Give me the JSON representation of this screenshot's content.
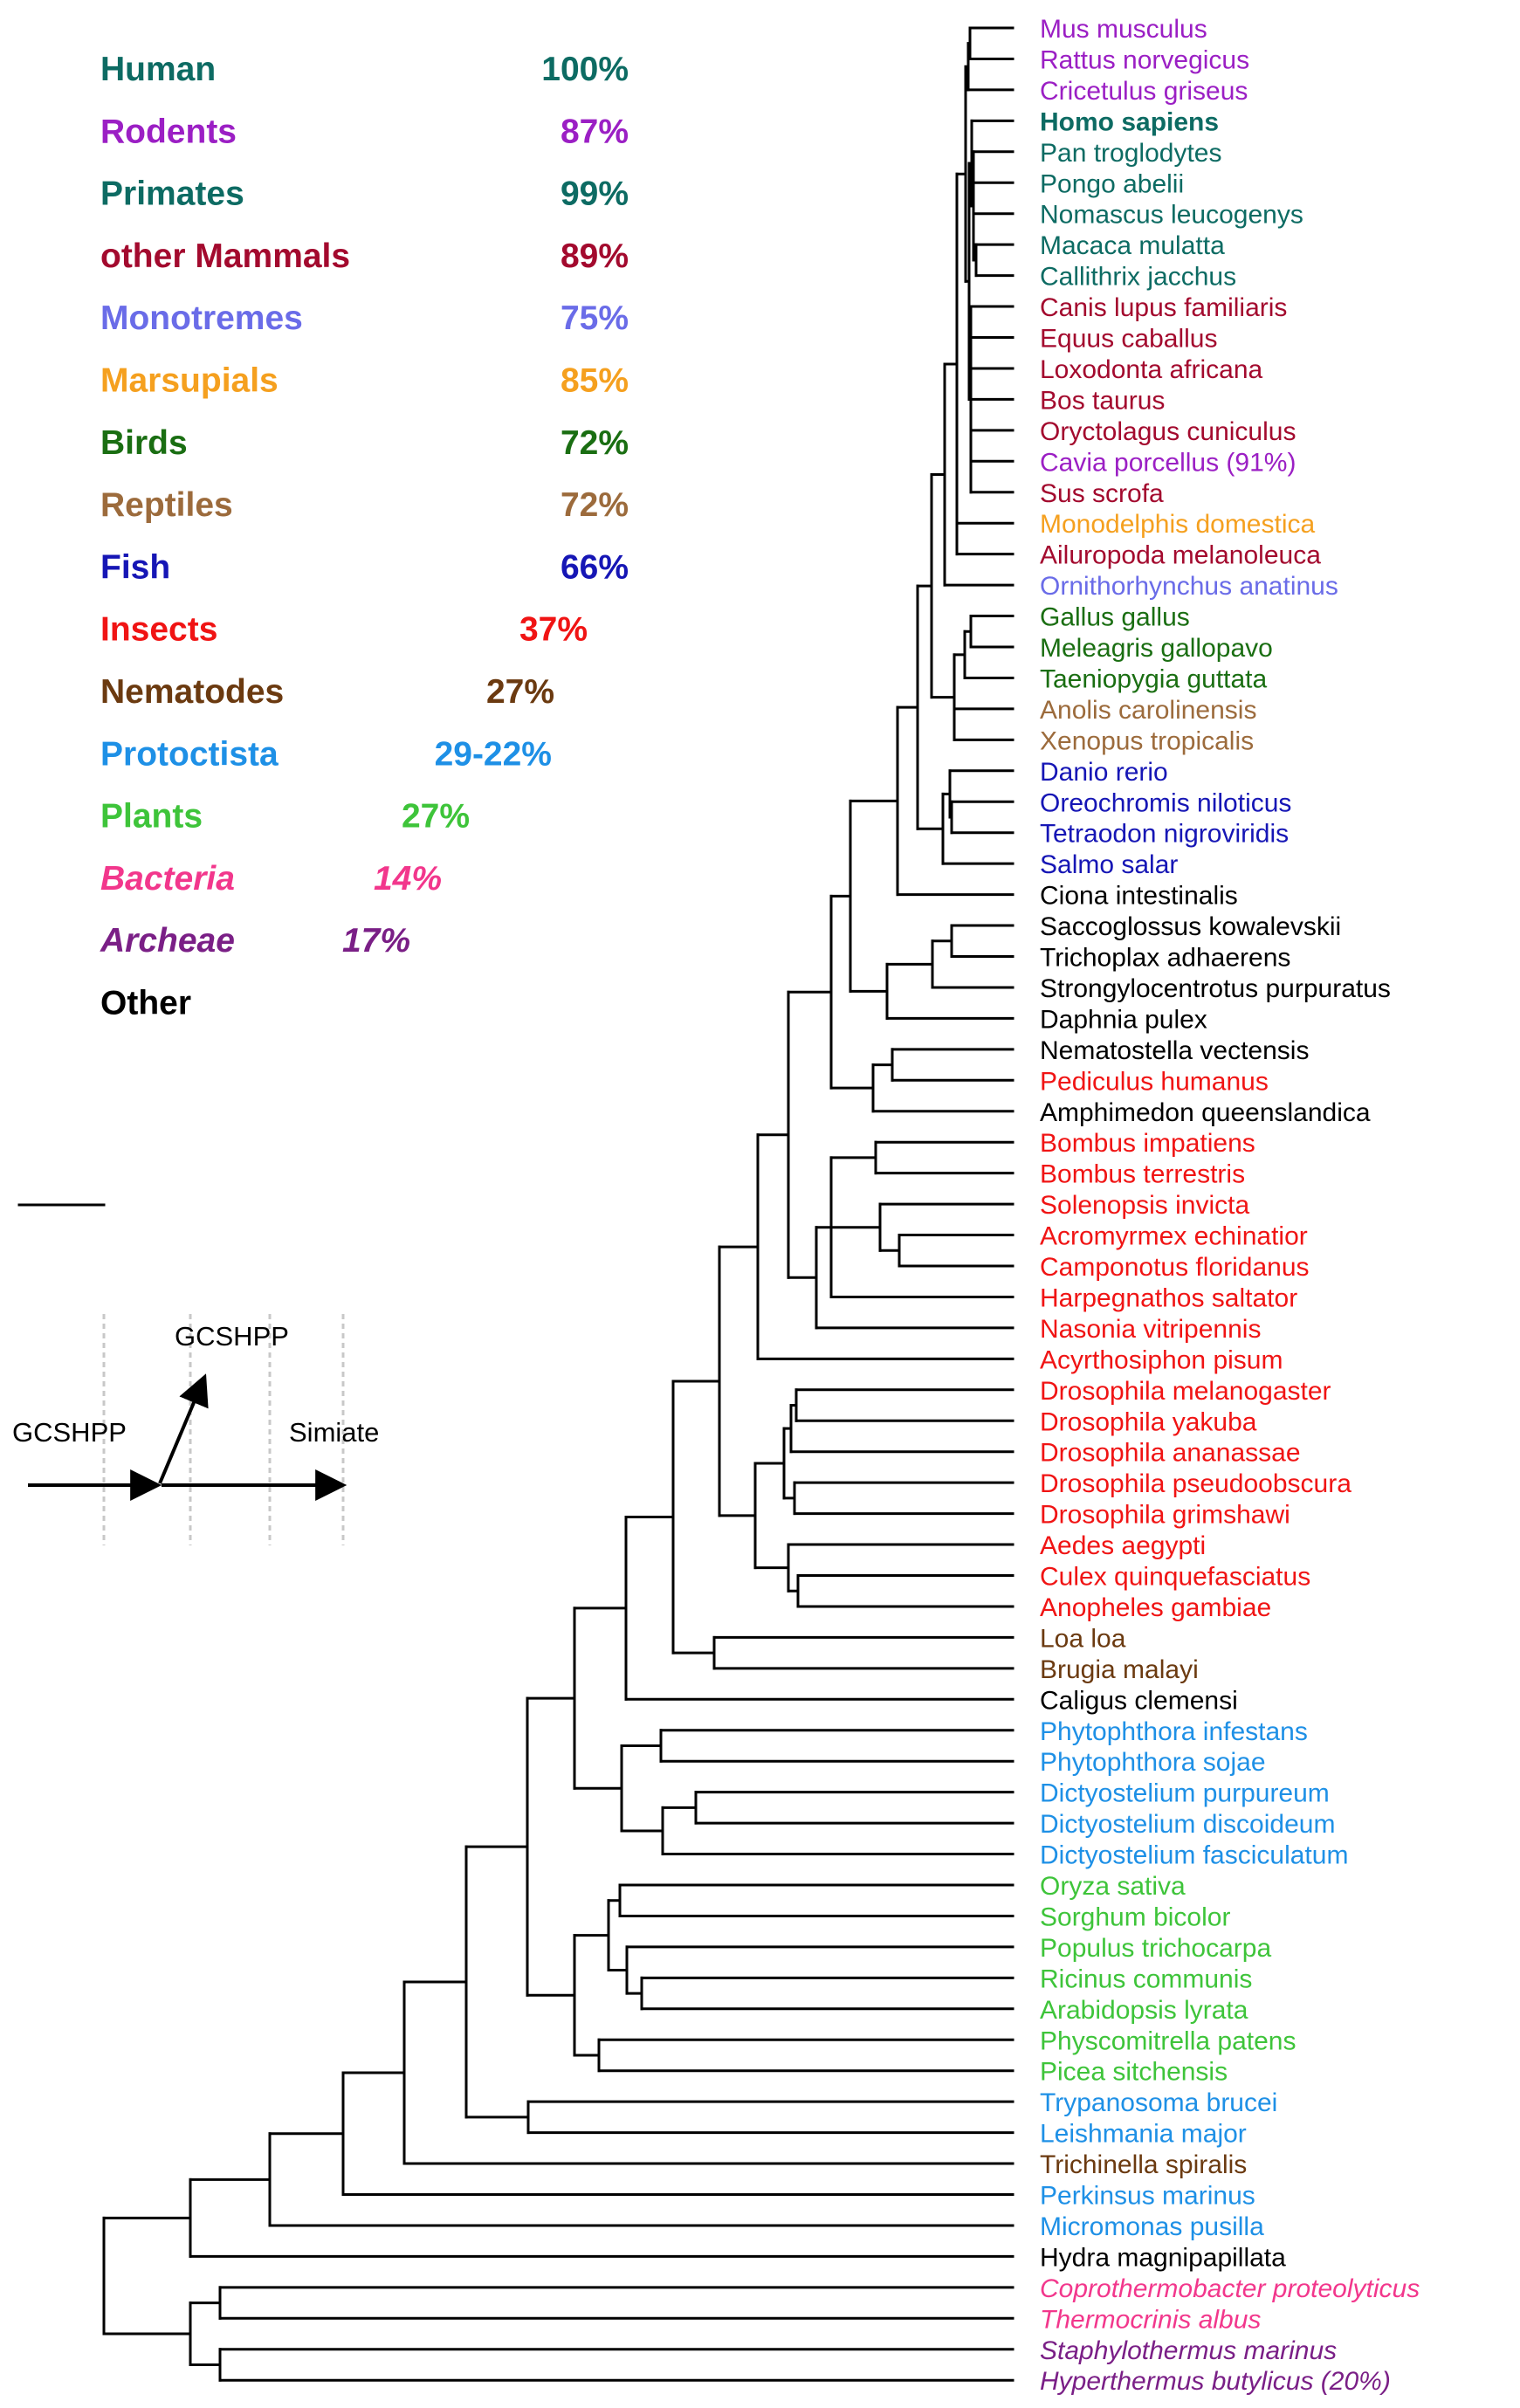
{
  "colors": {
    "human": "#0d6b63",
    "rodents": "#9b1fc4",
    "primates": "#0d6b63",
    "other_mammals": "#a30a2e",
    "monotremes": "#6a6ce8",
    "marsupials": "#f5a01f",
    "birds": "#1a6e12",
    "reptiles": "#9c6b3c",
    "fish": "#1616b5",
    "insects": "#f01414",
    "nematodes": "#6b3a10",
    "protoctista": "#1e90e6",
    "plants": "#3ec43a",
    "bacteria": "#f2378c",
    "archaea": "#7a1f86",
    "other": "#000000"
  },
  "legend": [
    {
      "name": "Human",
      "pct": "100%",
      "group": "human"
    },
    {
      "name": "Rodents",
      "pct": "87%",
      "group": "rodents"
    },
    {
      "name": "Primates",
      "pct": "99%",
      "group": "primates"
    },
    {
      "name": "other Mammals",
      "pct": "89%",
      "group": "other_mammals"
    },
    {
      "name": "Monotremes",
      "pct": "75%",
      "group": "monotremes"
    },
    {
      "name": "Marsupials",
      "pct": "85%",
      "group": "marsupials"
    },
    {
      "name": "Birds",
      "pct": "72%",
      "group": "birds"
    },
    {
      "name": "Reptiles",
      "pct": "72%",
      "group": "reptiles"
    },
    {
      "name": "Fish",
      "pct": "66%",
      "group": "fish"
    },
    {
      "name": "Insects",
      "pct": "37%",
      "group": "insects"
    },
    {
      "name": "Nematodes",
      "pct": "27%",
      "group": "nematodes"
    },
    {
      "name": "Protoctista",
      "pct": "29-22%",
      "group": "protoctista"
    },
    {
      "name": "Plants",
      "pct": "27%",
      "group": "plants"
    },
    {
      "name": "Bacteria",
      "pct": "14%",
      "group": "bacteria",
      "italic": true
    },
    {
      "name": "Archeae",
      "pct": "17%",
      "group": "archaea",
      "italic": true
    },
    {
      "name": "Other",
      "pct": "",
      "group": "other"
    }
  ],
  "events": {
    "gcshpp_origin": "GCSHPP",
    "gcshpp_branch": "GCSHPP",
    "simiate": "Simiate"
  },
  "species": [
    {
      "name": "Mus musculus",
      "group": "rodents"
    },
    {
      "name": "Rattus norvegicus",
      "group": "rodents"
    },
    {
      "name": "Cricetulus griseus",
      "group": "rodents"
    },
    {
      "name": "Homo sapiens",
      "group": "human",
      "bold": true
    },
    {
      "name": "Pan troglodytes",
      "group": "primates"
    },
    {
      "name": "Pongo abelii",
      "group": "primates"
    },
    {
      "name": "Nomascus leucogenys",
      "group": "primates"
    },
    {
      "name": "Macaca mulatta",
      "group": "primates"
    },
    {
      "name": "Callithrix jacchus",
      "group": "primates"
    },
    {
      "name": "Canis lupus familiaris",
      "group": "other_mammals"
    },
    {
      "name": "Equus caballus",
      "group": "other_mammals"
    },
    {
      "name": "Loxodonta africana",
      "group": "other_mammals"
    },
    {
      "name": "Bos taurus",
      "group": "other_mammals"
    },
    {
      "name": "Oryctolagus cuniculus",
      "group": "other_mammals"
    },
    {
      "name": "Cavia porcellus (91%)",
      "group": "rodents"
    },
    {
      "name": "Sus scrofa",
      "group": "other_mammals"
    },
    {
      "name": "Monodelphis domestica",
      "group": "marsupials"
    },
    {
      "name": "Ailuropoda melanoleuca",
      "group": "other_mammals"
    },
    {
      "name": "Ornithorhynchus anatinus",
      "group": "monotremes"
    },
    {
      "name": "Gallus gallus",
      "group": "birds"
    },
    {
      "name": "Meleagris gallopavo",
      "group": "birds"
    },
    {
      "name": "Taeniopygia guttata",
      "group": "birds"
    },
    {
      "name": "Anolis carolinensis",
      "group": "reptiles"
    },
    {
      "name": "Xenopus tropicalis",
      "group": "reptiles"
    },
    {
      "name": "Danio rerio",
      "group": "fish"
    },
    {
      "name": "Oreochromis niloticus",
      "group": "fish"
    },
    {
      "name": "Tetraodon nigroviridis",
      "group": "fish"
    },
    {
      "name": "Salmo salar",
      "group": "fish"
    },
    {
      "name": "Ciona intestinalis",
      "group": "other"
    },
    {
      "name": "Saccoglossus kowalevskii",
      "group": "other"
    },
    {
      "name": "Trichoplax adhaerens",
      "group": "other"
    },
    {
      "name": "Strongylocentrotus purpuratus",
      "group": "other"
    },
    {
      "name": "Daphnia pulex",
      "group": "other"
    },
    {
      "name": "Nematostella vectensis",
      "group": "other"
    },
    {
      "name": "Pediculus humanus",
      "group": "insects"
    },
    {
      "name": "Amphimedon queenslandica",
      "group": "other"
    },
    {
      "name": "Bombus impatiens",
      "group": "insects"
    },
    {
      "name": "Bombus terrestris",
      "group": "insects"
    },
    {
      "name": "Solenopsis invicta",
      "group": "insects"
    },
    {
      "name": "Acromyrmex echinatior",
      "group": "insects"
    },
    {
      "name": "Camponotus floridanus",
      "group": "insects"
    },
    {
      "name": "Harpegnathos saltator",
      "group": "insects"
    },
    {
      "name": "Nasonia vitripennis",
      "group": "insects"
    },
    {
      "name": "Acyrthosiphon pisum",
      "group": "insects"
    },
    {
      "name": "Drosophila melanogaster",
      "group": "insects"
    },
    {
      "name": "Drosophila yakuba",
      "group": "insects"
    },
    {
      "name": "Drosophila ananassae",
      "group": "insects"
    },
    {
      "name": "Drosophila pseudoobscura",
      "group": "insects"
    },
    {
      "name": "Drosophila grimshawi",
      "group": "insects"
    },
    {
      "name": "Aedes aegypti",
      "group": "insects"
    },
    {
      "name": "Culex quinquefasciatus",
      "group": "insects"
    },
    {
      "name": "Anopheles gambiae",
      "group": "insects"
    },
    {
      "name": "Loa loa",
      "group": "nematodes"
    },
    {
      "name": "Brugia malayi",
      "group": "nematodes"
    },
    {
      "name": "Caligus clemensi",
      "group": "other"
    },
    {
      "name": "Phytophthora infestans",
      "group": "protoctista"
    },
    {
      "name": "Phytophthora sojae",
      "group": "protoctista"
    },
    {
      "name": "Dictyostelium purpureum",
      "group": "protoctista"
    },
    {
      "name": "Dictyostelium discoideum",
      "group": "protoctista"
    },
    {
      "name": "Dictyostelium fasciculatum",
      "group": "protoctista"
    },
    {
      "name": "Oryza sativa",
      "group": "plants"
    },
    {
      "name": "Sorghum bicolor",
      "group": "plants"
    },
    {
      "name": "Populus trichocarpa",
      "group": "plants"
    },
    {
      "name": "Ricinus communis",
      "group": "plants"
    },
    {
      "name": "Arabidopsis lyrata",
      "group": "plants"
    },
    {
      "name": "Physcomitrella patens",
      "group": "plants"
    },
    {
      "name": "Picea sitchensis",
      "group": "plants"
    },
    {
      "name": "Trypanosoma brucei",
      "group": "protoctista"
    },
    {
      "name": "Leishmania major",
      "group": "protoctista"
    },
    {
      "name": "Trichinella spiralis",
      "group": "nematodes"
    },
    {
      "name": "Perkinsus marinus",
      "group": "protoctista"
    },
    {
      "name": "Micromonas pusilla",
      "group": "protoctista"
    },
    {
      "name": "Hydra magnipapillata",
      "group": "other"
    },
    {
      "name": "Coprothermobacter proteolyticus",
      "group": "bacteria",
      "italic": true
    },
    {
      "name": "Thermocrinis albus",
      "group": "bacteria",
      "italic": true
    },
    {
      "name": "Staphylothermus marinus",
      "group": "archaea",
      "italic": true
    },
    {
      "name": "Hyperthermus butylicus (20%)",
      "group": "archaea",
      "italic": true
    }
  ]
}
